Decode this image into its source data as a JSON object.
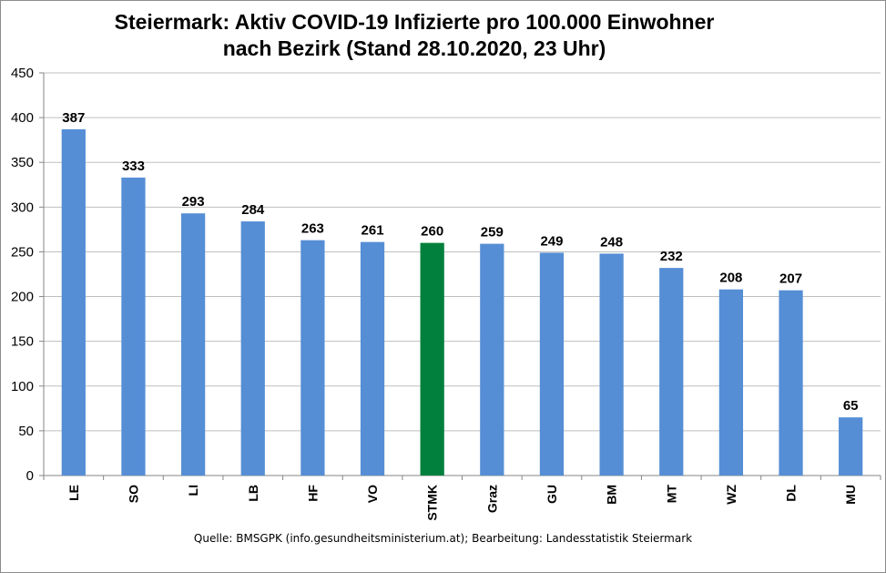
{
  "title_line1": "Steiermark: Aktiv COVID-19 Infizierte pro 100.000 Einwohner",
  "title_line2": "nach Bezirk (Stand 28.10.2020, 23 Uhr)",
  "source": "Quelle: BMSGPK (info.gesundheitsministerium.at); Bearbeitung: Landesstatistik Steiermark",
  "colors": {
    "bar": "#558ED5",
    "highlight": "#00803C",
    "gridline": "#BFBFBF",
    "axis": "#868686"
  },
  "chart_data": {
    "type": "bar",
    "title": "Steiermark: Aktiv COVID-19 Infizierte pro 100.000 Einwohner nach Bezirk (Stand 28.10.2020, 23 Uhr)",
    "categories": [
      "LE",
      "SO",
      "LI",
      "LB",
      "HF",
      "VO",
      "STMK",
      "Graz",
      "GU",
      "BM",
      "MT",
      "WZ",
      "DL",
      "MU"
    ],
    "values": [
      387,
      333,
      293,
      284,
      263,
      261,
      260,
      259,
      249,
      248,
      232,
      208,
      207,
      65
    ],
    "highlight_category": "STMK",
    "xlabel": "",
    "ylabel": "",
    "ylim": [
      0,
      450
    ],
    "yticks": [
      0,
      50,
      100,
      150,
      200,
      250,
      300,
      350,
      400,
      450
    ],
    "grid": true,
    "data_labels": true,
    "legend": "none"
  }
}
